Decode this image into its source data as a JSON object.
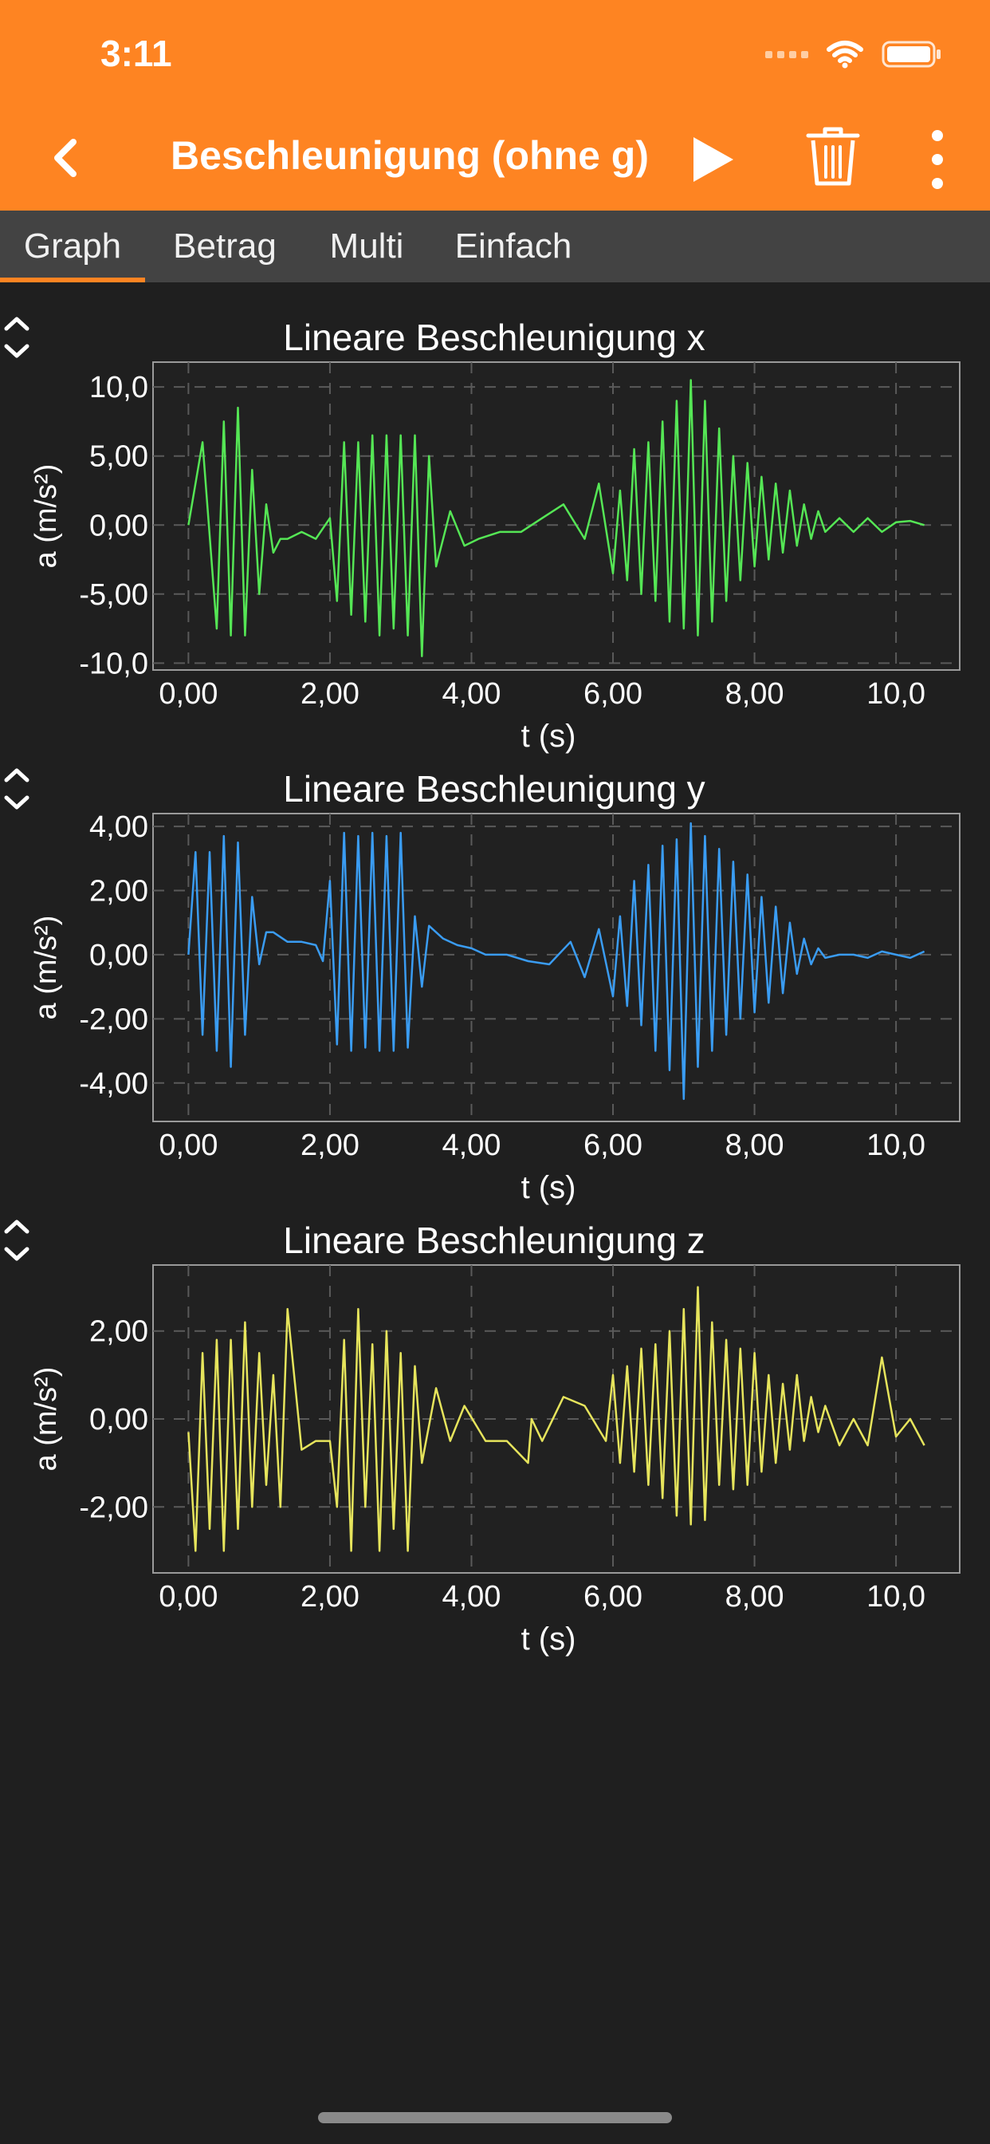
{
  "status_bar": {
    "time": "3:11"
  },
  "header": {
    "title": "Beschleunigung (ohne g)"
  },
  "icons": {
    "back": "chevron-left-icon",
    "play": "play-icon",
    "trash": "trash-icon",
    "more": "more-vertical-icon",
    "wifi": "wifi-icon",
    "battery": "battery-icon",
    "expand": "chevron-up-down-icon"
  },
  "colors": {
    "accent": "#fe8422",
    "background": "#1f1f1f",
    "tabbar": "#434343",
    "series_x": "#55e655",
    "series_y": "#3a9cf2",
    "series_z": "#e6e45c"
  },
  "tabs": [
    {
      "label": "Graph",
      "active": true
    },
    {
      "label": "Betrag",
      "active": false
    },
    {
      "label": "Multi",
      "active": false
    },
    {
      "label": "Einfach",
      "active": false
    }
  ],
  "chart_data": [
    {
      "type": "line",
      "title": "Lineare Beschleunigung x",
      "xlabel": "t (s)",
      "ylabel": "a (m/s²)",
      "xlim": [
        -0.5,
        10.9
      ],
      "ylim": [
        -10.5,
        11.8
      ],
      "xticks": [
        "0,00",
        "2,00",
        "4,00",
        "6,00",
        "8,00",
        "10,0"
      ],
      "yticks": [
        "10,0",
        "5,00",
        "0,00",
        "-5,00",
        "-10,0"
      ],
      "grid": true,
      "series": [
        {
          "color": "#55e655",
          "x": [
            0,
            0.2,
            0.4,
            0.5,
            0.6,
            0.7,
            0.8,
            0.9,
            1.0,
            1.1,
            1.2,
            1.3,
            1.4,
            1.6,
            1.8,
            2.0,
            2.1,
            2.2,
            2.3,
            2.4,
            2.5,
            2.6,
            2.7,
            2.8,
            2.9,
            3.0,
            3.1,
            3.2,
            3.3,
            3.4,
            3.5,
            3.7,
            3.9,
            4.1,
            4.4,
            4.7,
            5.0,
            5.3,
            5.6,
            5.8,
            6.0,
            6.1,
            6.2,
            6.3,
            6.4,
            6.5,
            6.6,
            6.7,
            6.8,
            6.9,
            7.0,
            7.1,
            7.2,
            7.3,
            7.4,
            7.5,
            7.6,
            7.7,
            7.8,
            7.9,
            8.0,
            8.1,
            8.2,
            8.3,
            8.4,
            8.5,
            8.6,
            8.7,
            8.8,
            8.9,
            9.0,
            9.2,
            9.4,
            9.6,
            9.8,
            10.0,
            10.2,
            10.4
          ],
          "y": [
            0,
            6,
            -7.5,
            7.5,
            -8,
            8.5,
            -8,
            4,
            -5,
            1.5,
            -2,
            -1,
            -1,
            -0.5,
            -1,
            0.5,
            -5.5,
            6,
            -6.5,
            6,
            -7,
            6.5,
            -8,
            6.5,
            -7.5,
            6.5,
            -8,
            6.5,
            -9.5,
            5,
            -3,
            1,
            -1.5,
            -1,
            -0.5,
            -0.5,
            0.5,
            1.5,
            -1,
            3,
            -3.5,
            2.5,
            -4,
            5.5,
            -5,
            6,
            -5.5,
            7.5,
            -7,
            9,
            -7.5,
            10.5,
            -8,
            9,
            -7,
            7,
            -5.5,
            5,
            -4,
            4.5,
            -3,
            3.5,
            -2.5,
            3,
            -2,
            2.5,
            -1.5,
            1.5,
            -1,
            1,
            -0.5,
            0.5,
            -0.5,
            0.5,
            -0.5,
            0.2,
            0.3,
            0
          ]
        }
      ]
    },
    {
      "type": "line",
      "title": "Lineare Beschleunigung y",
      "xlabel": "t (s)",
      "ylabel": "a (m/s²)",
      "xlim": [
        -0.5,
        10.9
      ],
      "ylim": [
        -5.2,
        4.4
      ],
      "xticks": [
        "0,00",
        "2,00",
        "4,00",
        "6,00",
        "8,00",
        "10,0"
      ],
      "yticks": [
        "4,00",
        "2,00",
        "0,00",
        "-2,00",
        "-4,00"
      ],
      "grid": true,
      "series": [
        {
          "color": "#3a9cf2",
          "x": [
            0,
            0.1,
            0.2,
            0.3,
            0.4,
            0.5,
            0.6,
            0.7,
            0.8,
            0.9,
            1.0,
            1.1,
            1.2,
            1.4,
            1.6,
            1.8,
            1.9,
            2.0,
            2.1,
            2.2,
            2.3,
            2.4,
            2.5,
            2.6,
            2.7,
            2.8,
            2.9,
            3.0,
            3.1,
            3.2,
            3.3,
            3.4,
            3.6,
            3.8,
            4.0,
            4.2,
            4.5,
            4.8,
            5.1,
            5.4,
            5.6,
            5.8,
            6.0,
            6.1,
            6.2,
            6.3,
            6.4,
            6.5,
            6.6,
            6.7,
            6.8,
            6.9,
            7.0,
            7.1,
            7.2,
            7.3,
            7.4,
            7.5,
            7.6,
            7.7,
            7.8,
            7.9,
            8.0,
            8.1,
            8.2,
            8.3,
            8.4,
            8.5,
            8.6,
            8.7,
            8.8,
            8.9,
            9.0,
            9.2,
            9.4,
            9.6,
            9.8,
            10.0,
            10.2,
            10.4
          ],
          "y": [
            0,
            3.2,
            -2.5,
            3.2,
            -3,
            3.7,
            -3.5,
            3.5,
            -2.5,
            1.8,
            -0.3,
            0.7,
            0.7,
            0.4,
            0.4,
            0.3,
            -0.2,
            2.3,
            -2.8,
            3.8,
            -3,
            3.7,
            -2.9,
            3.8,
            -3,
            3.7,
            -3,
            3.8,
            -2.9,
            1.2,
            -1,
            0.9,
            0.5,
            0.3,
            0.2,
            0,
            0,
            -0.2,
            -0.3,
            0.4,
            -0.7,
            0.8,
            -1.3,
            1.2,
            -1.6,
            2.3,
            -2.2,
            2.8,
            -3,
            3.4,
            -3.6,
            3.6,
            -4.5,
            4.1,
            -3.5,
            3.7,
            -3,
            3.3,
            -2.5,
            2.9,
            -2,
            2.5,
            -1.8,
            1.8,
            -1.5,
            1.5,
            -1.2,
            1,
            -0.6,
            0.5,
            -0.3,
            0.2,
            -0.1,
            0,
            0,
            -0.1,
            0.1,
            0,
            -0.1,
            0.1
          ]
        }
      ]
    },
    {
      "type": "line",
      "title": "Lineare Beschleunigung z",
      "xlabel": "t (s)",
      "ylabel": "a (m/s²)",
      "xlim": [
        -0.5,
        10.9
      ],
      "ylim": [
        -3.5,
        3.5
      ],
      "xticks": [
        "0,00",
        "2,00",
        "4,00",
        "6,00",
        "8,00",
        "10,0"
      ],
      "yticks": [
        "2,00",
        "0,00",
        "-2,00"
      ],
      "grid": true,
      "series": [
        {
          "color": "#e6e45c",
          "x": [
            0,
            0.1,
            0.2,
            0.3,
            0.4,
            0.5,
            0.6,
            0.7,
            0.8,
            0.9,
            1.0,
            1.1,
            1.2,
            1.3,
            1.4,
            1.6,
            1.8,
            2.0,
            2.1,
            2.2,
            2.3,
            2.4,
            2.5,
            2.6,
            2.7,
            2.8,
            2.9,
            3.0,
            3.1,
            3.2,
            3.3,
            3.5,
            3.7,
            3.9,
            4.2,
            4.5,
            4.8,
            4.85,
            5.0,
            5.3,
            5.6,
            5.9,
            6.0,
            6.1,
            6.2,
            6.3,
            6.4,
            6.5,
            6.6,
            6.7,
            6.8,
            6.9,
            7.0,
            7.1,
            7.2,
            7.3,
            7.4,
            7.5,
            7.6,
            7.7,
            7.8,
            7.9,
            8.0,
            8.1,
            8.2,
            8.3,
            8.4,
            8.5,
            8.6,
            8.7,
            8.8,
            8.9,
            9.0,
            9.2,
            9.4,
            9.6,
            9.8,
            10.0,
            10.2,
            10.4
          ],
          "y": [
            -0.3,
            -3,
            1.5,
            -2.5,
            1.8,
            -3,
            1.8,
            -2.5,
            2.2,
            -2,
            1.5,
            -1.5,
            1,
            -2,
            2.5,
            -0.7,
            -0.5,
            -0.5,
            -2,
            1.8,
            -3,
            2.5,
            -2,
            1.7,
            -3,
            2,
            -2.5,
            1.5,
            -3,
            1.2,
            -1,
            0.7,
            -0.5,
            0.3,
            -0.5,
            -0.5,
            -1,
            0,
            -0.5,
            0.5,
            0.3,
            -0.5,
            1,
            -1,
            1.2,
            -1.2,
            1.6,
            -1.5,
            1.7,
            -1.8,
            2,
            -2.2,
            2.5,
            -2.4,
            3,
            -2.3,
            2.2,
            -1.5,
            1.8,
            -1.6,
            1.6,
            -1.5,
            1.5,
            -1.2,
            1,
            -1,
            0.8,
            -0.7,
            1,
            -0.5,
            0.5,
            -0.3,
            0.3,
            -0.6,
            0,
            -0.6,
            1.4,
            -0.4,
            0,
            -0.6
          ]
        }
      ]
    }
  ]
}
